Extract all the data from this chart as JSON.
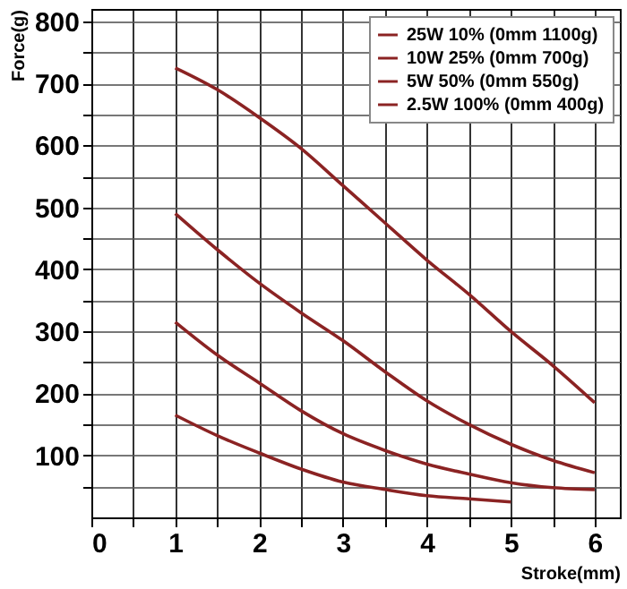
{
  "chart_data": {
    "type": "line",
    "xlabel": "Stroke(mm)",
    "ylabel": "Force(g)",
    "xlim": [
      0,
      6.3
    ],
    "ylim": [
      0,
      820
    ],
    "xticks": [
      0,
      {
        "value": 0.5,
        "label": null
      },
      1,
      {
        "value": 1.5,
        "label": null
      },
      2,
      {
        "value": 2.5,
        "label": null
      },
      3,
      {
        "value": 3.5,
        "label": null
      },
      4,
      {
        "value": 4.5,
        "label": null
      },
      5,
      {
        "value": 5.5,
        "label": null
      },
      6
    ],
    "yticks": [
      {
        "value": 50,
        "label": null
      },
      100,
      {
        "value": 150,
        "label": null
      },
      200,
      {
        "value": 250,
        "label": null
      },
      300,
      {
        "value": 350,
        "label": null
      },
      400,
      {
        "value": 450,
        "label": null
      },
      500,
      {
        "value": 550,
        "label": null
      },
      600,
      {
        "value": 650,
        "label": null
      },
      700,
      {
        "value": 750,
        "label": null
      },
      800
    ],
    "grid": true,
    "legend": "top right",
    "marker": "none",
    "line_style": "solid",
    "x": [
      1,
      1.5,
      2,
      2.5,
      3,
      3.5,
      4,
      4.5,
      5,
      5.5,
      6
    ],
    "series": [
      {
        "name": "25W 10% (0mm 1100g)",
        "color": "#8b2323",
        "values": [
          725,
          690,
          645,
          595,
          535,
          475,
          415,
          360,
          300,
          245,
          185
        ]
      },
      {
        "name": "10W 25% (0mm 700g)",
        "color": "#8b2323",
        "values": [
          490,
          432,
          378,
          330,
          285,
          235,
          188,
          150,
          118,
          92,
          72
        ]
      },
      {
        "name": "5W 50% (0mm 550g)",
        "color": "#8b2323",
        "values": [
          315,
          262,
          217,
          172,
          135,
          108,
          86,
          70,
          56,
          48,
          45
        ]
      },
      {
        "name": "2.5W 100% (0mm 400g)",
        "color": "#8b2323",
        "values": [
          165,
          132,
          104,
          78,
          57,
          45,
          35,
          30,
          25,
          null,
          null
        ]
      }
    ]
  }
}
